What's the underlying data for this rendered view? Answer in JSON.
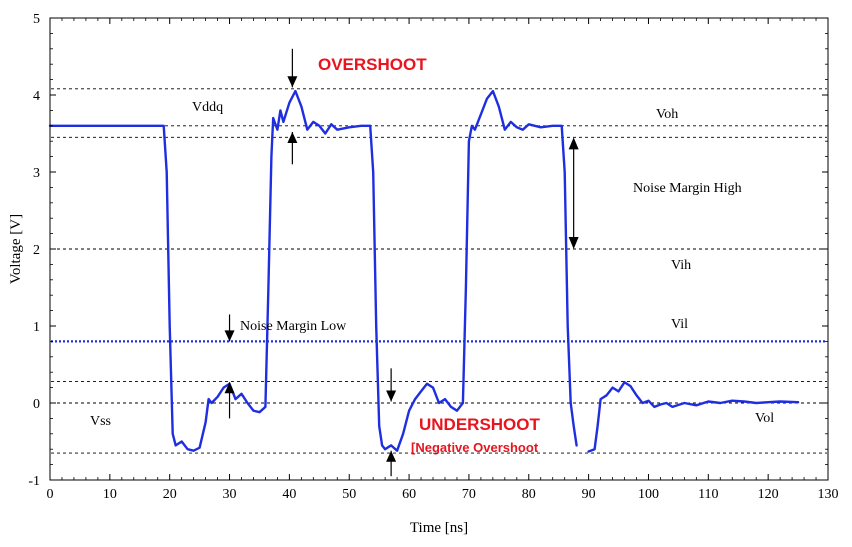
{
  "chart_data": {
    "type": "line",
    "title": "",
    "xlabel": "Time [ns]",
    "ylabel": "Voltage [V]",
    "xlim": [
      0,
      130
    ],
    "ylim": [
      -1,
      5
    ],
    "x_ticks": [
      0,
      10,
      20,
      30,
      40,
      50,
      60,
      70,
      80,
      90,
      100,
      110,
      120,
      130
    ],
    "y_ticks": [
      -1,
      0,
      1,
      2,
      3,
      4,
      5
    ],
    "grid": false,
    "legend": "none",
    "colors": {
      "signal": "#1f2fe0",
      "vil_line": "#1f2fe0",
      "ref_lines": "#000000",
      "highlight": "#e8141e"
    },
    "reference_lines": [
      {
        "name": "Vddq",
        "y": 4.08,
        "style": "dashed"
      },
      {
        "name": "Voh",
        "y": 3.6,
        "style": "dashed"
      },
      {
        "name": "Voh_band",
        "y": 3.45,
        "style": "dashed"
      },
      {
        "name": "Vih",
        "y": 2.0,
        "style": "dashed"
      },
      {
        "name": "Vil",
        "y": 0.8,
        "style": "dotted-blue"
      },
      {
        "name": "Vol_band",
        "y": 0.28,
        "style": "dashed"
      },
      {
        "name": "Vss",
        "y": 0.0,
        "style": "dashed"
      },
      {
        "name": "Vss_min",
        "y": -0.65,
        "style": "dashed"
      }
    ],
    "series": [
      {
        "x": [
          0,
          19,
          19.5,
          20,
          20.5,
          21,
          22,
          23,
          24,
          25,
          26,
          26.5,
          27,
          28,
          29,
          30,
          31,
          32,
          33,
          34,
          35,
          36,
          36.5,
          37,
          37.3,
          38,
          38.5,
          39,
          40,
          41,
          42,
          43,
          44,
          45,
          46,
          47,
          48,
          50,
          52,
          53.5,
          54,
          54.5,
          55,
          55.5,
          56,
          57,
          58,
          59,
          60,
          61,
          62,
          63,
          64,
          65,
          66,
          67,
          68,
          69,
          69.5,
          70,
          70.5,
          71,
          72,
          73,
          74,
          75,
          76,
          77,
          78,
          79,
          80,
          82,
          84,
          85.5,
          86,
          86.5,
          87,
          87.5,
          88
        ],
        "y": [
          3.6,
          3.6,
          3.0,
          1.0,
          -0.4,
          -0.55,
          -0.5,
          -0.6,
          -0.62,
          -0.58,
          -0.25,
          0.05,
          0.0,
          0.08,
          0.2,
          0.25,
          0.05,
          0.12,
          0.0,
          -0.1,
          -0.12,
          -0.05,
          1.5,
          3.2,
          3.7,
          3.55,
          3.8,
          3.65,
          3.9,
          4.05,
          3.85,
          3.55,
          3.65,
          3.6,
          3.5,
          3.62,
          3.55,
          3.58,
          3.6,
          3.6,
          3.0,
          1.0,
          -0.3,
          -0.55,
          -0.6,
          -0.55,
          -0.62,
          -0.4,
          -0.1,
          0.05,
          0.15,
          0.25,
          0.2,
          0.0,
          0.05,
          -0.05,
          -0.1,
          0.0,
          1.5,
          3.4,
          3.6,
          3.55,
          3.75,
          3.95,
          4.05,
          3.85,
          3.55,
          3.65,
          3.58,
          3.55,
          3.62,
          3.58,
          3.6,
          3.6,
          3.0,
          1.0,
          0.0,
          -0.3,
          -0.55
        ]
      },
      {
        "x": [
          90,
          91,
          91.5,
          92,
          93,
          94,
          95,
          96,
          97,
          98,
          99,
          100,
          101,
          102,
          103,
          104,
          106,
          108,
          110,
          112,
          114,
          116,
          118,
          120,
          122,
          125
        ],
        "y": [
          -0.63,
          -0.6,
          -0.3,
          0.05,
          0.1,
          0.2,
          0.15,
          0.27,
          0.22,
          0.1,
          0.0,
          0.03,
          -0.05,
          -0.02,
          0.0,
          -0.05,
          0.0,
          -0.03,
          0.02,
          0.0,
          0.03,
          0.02,
          0.0,
          0.01,
          0.02,
          0.01
        ]
      }
    ],
    "annotations": {
      "overshoot": "OVERSHOOT",
      "undershoot": "UNDERSHOOT",
      "negative_overshoot": "[Negative Overshoot",
      "noise_margin_high": "Noise Margin High",
      "noise_margin_low": "Noise Margin Low",
      "vddq": "Vddq",
      "voh": "Voh",
      "vih": "Vih",
      "vil": "Vil",
      "vss": "Vss",
      "vol": "Vol"
    }
  }
}
